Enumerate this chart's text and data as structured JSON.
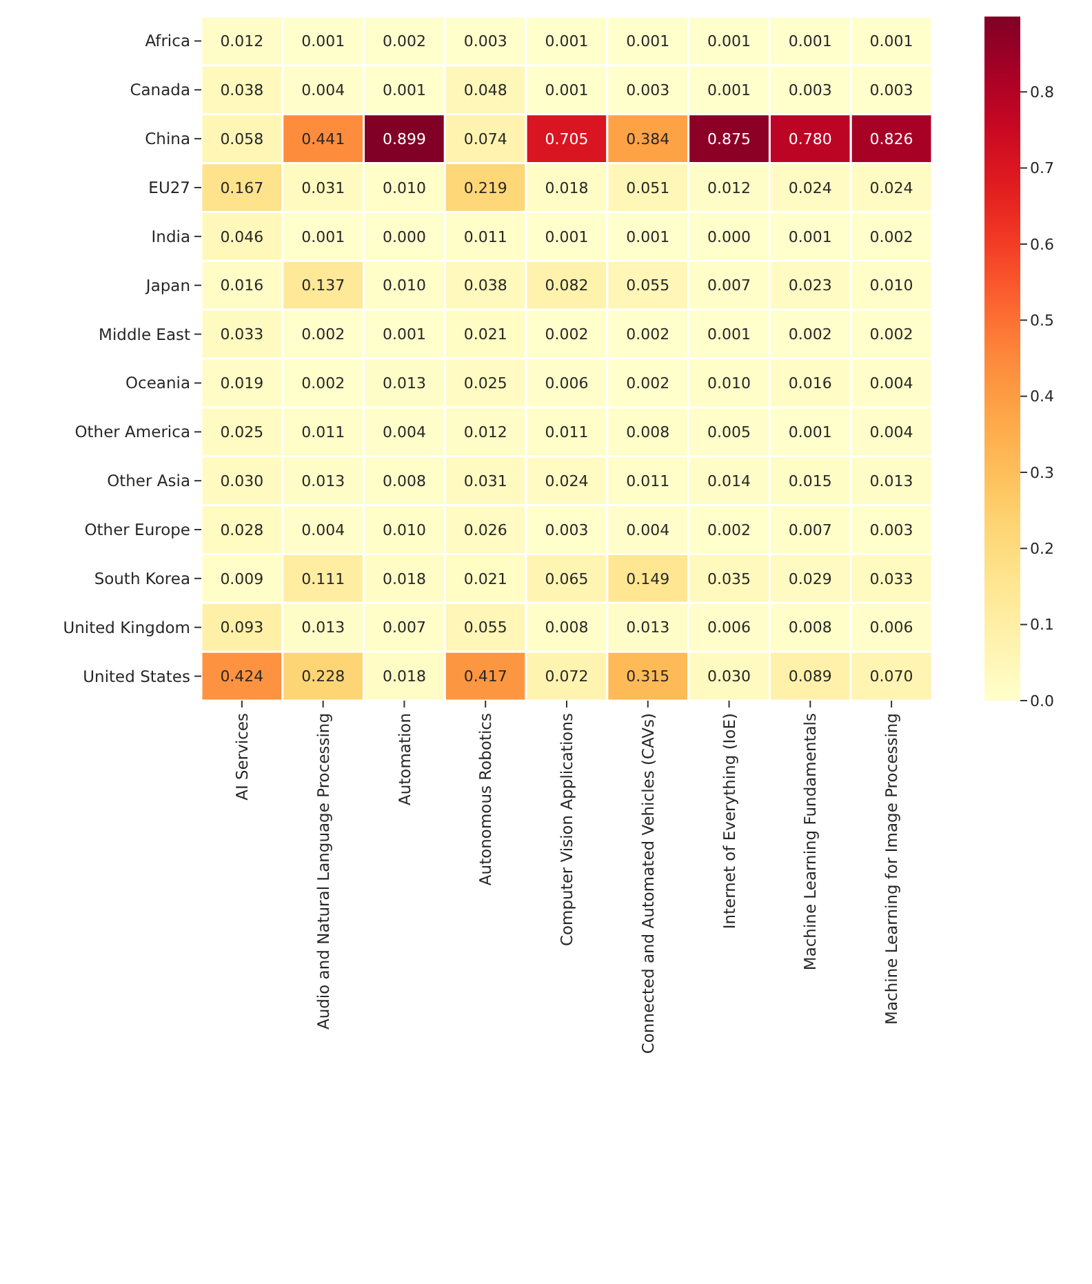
{
  "chart_data": {
    "type": "heatmap",
    "categories": [
      "AI Services",
      "Audio and Natural Language Processing",
      "Automation",
      "Autonomous Robotics",
      "Computer Vision Applications",
      "Connected and Automated Vehicles (CAVs)",
      "Internet of Everything (IoE)",
      "Machine Learning Fundamentals",
      "Machine Learning for Image Processing"
    ],
    "y_categories": [
      "Africa",
      "Canada",
      "China",
      "EU27",
      "India",
      "Japan",
      "Middle East",
      "Oceania",
      "Other America",
      "Other Asia",
      "Other Europe",
      "South Korea",
      "United Kingdom",
      "United States"
    ],
    "cells": [
      [
        0.012,
        0.001,
        0.002,
        0.003,
        0.001,
        0.001,
        0.001,
        0.001,
        0.001
      ],
      [
        0.038,
        0.004,
        0.001,
        0.048,
        0.001,
        0.003,
        0.001,
        0.003,
        0.003
      ],
      [
        0.058,
        0.441,
        0.899,
        0.074,
        0.705,
        0.384,
        0.875,
        0.78,
        0.826
      ],
      [
        0.167,
        0.031,
        0.01,
        0.219,
        0.018,
        0.051,
        0.012,
        0.024,
        0.024
      ],
      [
        0.046,
        0.001,
        0.0,
        0.011,
        0.001,
        0.001,
        0.0,
        0.001,
        0.002
      ],
      [
        0.016,
        0.137,
        0.01,
        0.038,
        0.082,
        0.055,
        0.007,
        0.023,
        0.01
      ],
      [
        0.033,
        0.002,
        0.001,
        0.021,
        0.002,
        0.002,
        0.001,
        0.002,
        0.002
      ],
      [
        0.019,
        0.002,
        0.013,
        0.025,
        0.006,
        0.002,
        0.01,
        0.016,
        0.004
      ],
      [
        0.025,
        0.011,
        0.004,
        0.012,
        0.011,
        0.008,
        0.005,
        0.001,
        0.004
      ],
      [
        0.03,
        0.013,
        0.008,
        0.031,
        0.024,
        0.011,
        0.014,
        0.015,
        0.013
      ],
      [
        0.028,
        0.004,
        0.01,
        0.026,
        0.003,
        0.004,
        0.002,
        0.007,
        0.003
      ],
      [
        0.009,
        0.111,
        0.018,
        0.021,
        0.065,
        0.149,
        0.035,
        0.029,
        0.033
      ],
      [
        0.093,
        0.013,
        0.007,
        0.055,
        0.008,
        0.013,
        0.006,
        0.008,
        0.006
      ],
      [
        0.424,
        0.228,
        0.018,
        0.417,
        0.072,
        0.315,
        0.03,
        0.089,
        0.07
      ]
    ],
    "cell_labels": [
      [
        "0.012",
        "0.001",
        "0.002",
        "0.003",
        "0.001",
        "0.001",
        "0.001",
        "0.001",
        "0.001"
      ],
      [
        "0.038",
        "0.004",
        "0.001",
        "0.048",
        "0.001",
        "0.003",
        "0.001",
        "0.003",
        "0.003"
      ],
      [
        "0.058",
        "0.441",
        "0.899",
        "0.074",
        "0.705",
        "0.384",
        "0.875",
        "0.780",
        "0.826"
      ],
      [
        "0.167",
        "0.031",
        "0.010",
        "0.219",
        "0.018",
        "0.051",
        "0.012",
        "0.024",
        "0.024"
      ],
      [
        "0.046",
        "0.001",
        "0.000",
        "0.011",
        "0.001",
        "0.001",
        "0.000",
        "0.001",
        "0.002"
      ],
      [
        "0.016",
        "0.137",
        "0.010",
        "0.038",
        "0.082",
        "0.055",
        "0.007",
        "0.023",
        "0.010"
      ],
      [
        "0.033",
        "0.002",
        "0.001",
        "0.021",
        "0.002",
        "0.002",
        "0.001",
        "0.002",
        "0.002"
      ],
      [
        "0.019",
        "0.002",
        "0.013",
        "0.025",
        "0.006",
        "0.002",
        "0.010",
        "0.016",
        "0.004"
      ],
      [
        "0.025",
        "0.011",
        "0.004",
        "0.012",
        "0.011",
        "0.008",
        "0.005",
        "0.001",
        "0.004"
      ],
      [
        "0.030",
        "0.013",
        "0.008",
        "0.031",
        "0.024",
        "0.011",
        "0.014",
        "0.015",
        "0.013"
      ],
      [
        "0.028",
        "0.004",
        "0.010",
        "0.026",
        "0.003",
        "0.004",
        "0.002",
        "0.007",
        "0.003"
      ],
      [
        "0.009",
        "0.111",
        "0.018",
        "0.021",
        "0.065",
        "0.149",
        "0.035",
        "0.029",
        "0.033"
      ],
      [
        "0.093",
        "0.013",
        "0.007",
        "0.055",
        "0.008",
        "0.013",
        "0.006",
        "0.008",
        "0.006"
      ],
      [
        "0.424",
        "0.228",
        "0.018",
        "0.417",
        "0.072",
        "0.315",
        "0.030",
        "0.089",
        "0.070"
      ]
    ],
    "clim": [
      0,
      0.899
    ],
    "cticks": [
      {
        "value": 0,
        "label": "0.0"
      },
      {
        "value": 0.1,
        "label": "0.1"
      },
      {
        "value": 0.2,
        "label": "0.2"
      },
      {
        "value": 0.3,
        "label": "0.3"
      },
      {
        "value": 0.4,
        "label": "0.4"
      },
      {
        "value": 0.5,
        "label": "0.5"
      },
      {
        "value": 0.6,
        "label": "0.6"
      },
      {
        "value": 0.7,
        "label": "0.7"
      },
      {
        "value": 0.8,
        "label": "0.8"
      }
    ],
    "data_labels": true
  }
}
